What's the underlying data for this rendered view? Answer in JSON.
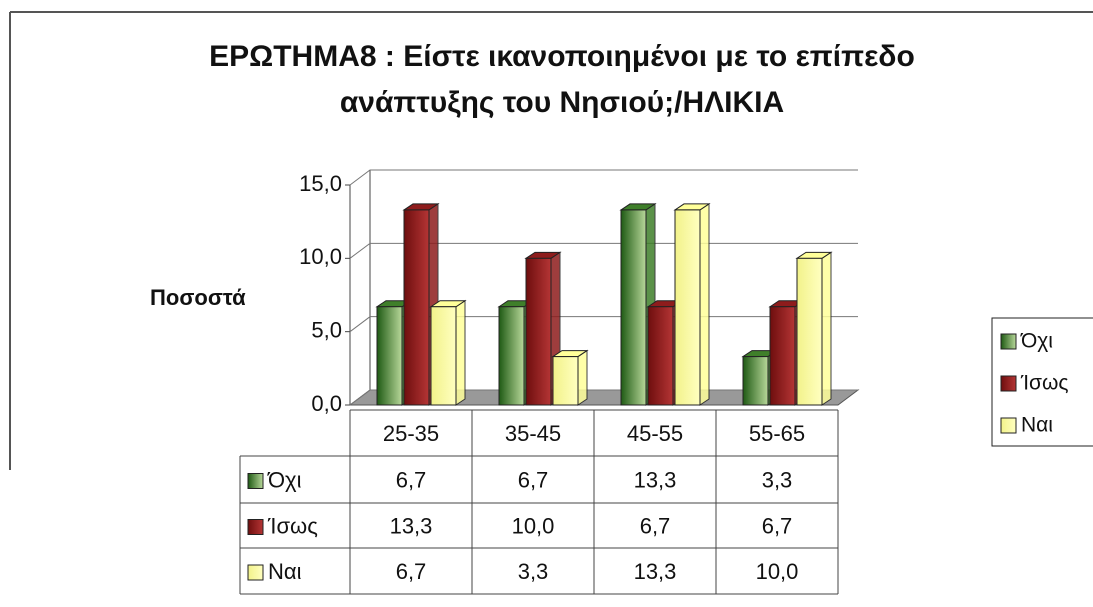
{
  "chart_data": {
    "type": "bar3d",
    "title": [
      "ΕΡΩΤΗΜΑ8 : Είστε ικανοποιημένοι με το επίπεδο",
      "ανάπτυξης του Νησιού;/ΗΛΙΚΙΑ"
    ],
    "ylabel": "Ποσοστά",
    "categories": [
      "25-35",
      "35-45",
      "45-55",
      "55-65"
    ],
    "series": [
      {
        "name": "Όχι",
        "color": "#3f7f2a",
        "values": [
          6.7,
          6.7,
          13.3,
          3.3
        ],
        "value_labels": [
          "6,7",
          "6,7",
          "13,3",
          "3,3"
        ]
      },
      {
        "name": "Ίσως",
        "color": "#8e1c1c",
        "values": [
          13.3,
          10.0,
          6.7,
          6.7
        ],
        "value_labels": [
          "13,3",
          "10,0",
          "6,7",
          "6,7"
        ]
      },
      {
        "name": "Ναι",
        "color": "#ffff99",
        "values": [
          6.7,
          3.3,
          13.3,
          10.0
        ],
        "value_labels": [
          "6,7",
          "3,3",
          "13,3",
          "10,0"
        ]
      }
    ],
    "ylim": [
      0,
      15
    ],
    "yticks": [
      {
        "value": 0,
        "label": "0,0"
      },
      {
        "value": 5,
        "label": "5,0"
      },
      {
        "value": 10,
        "label": "10,0"
      },
      {
        "value": 15,
        "label": "15,0"
      }
    ],
    "grid": true,
    "legend": "right",
    "data_table": true
  }
}
